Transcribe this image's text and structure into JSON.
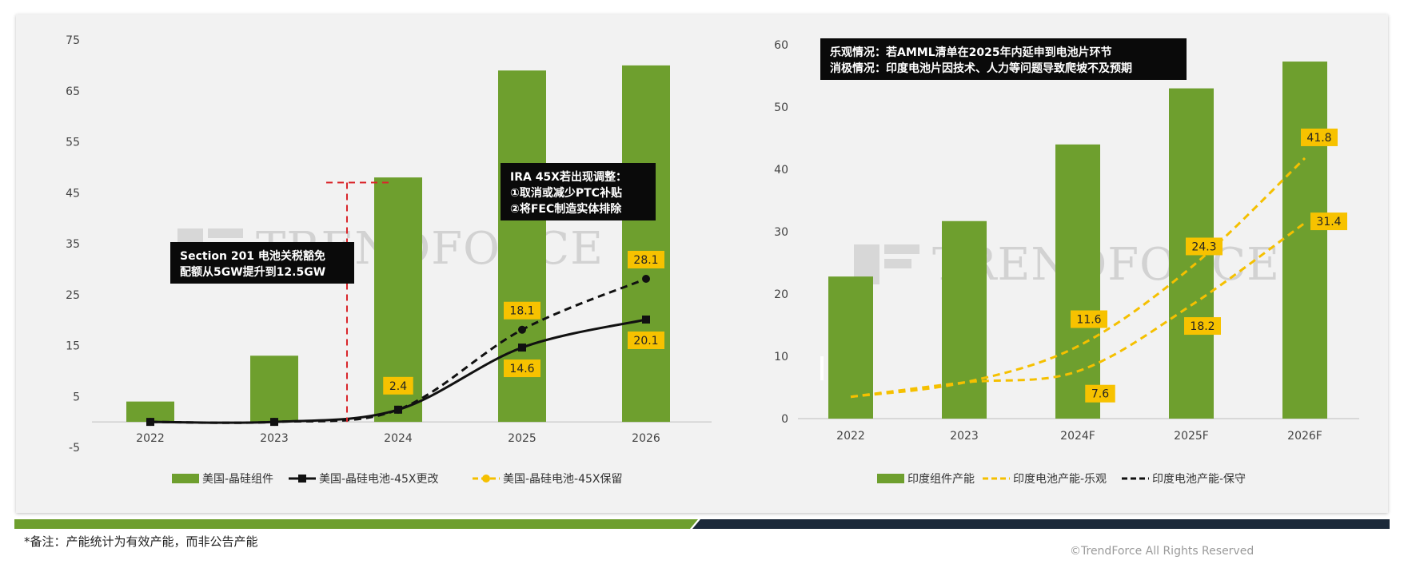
{
  "colors": {
    "bar": "#6e9f2e",
    "solid_line": "#111111",
    "dashed_yellow": "#f5c000",
    "dashed_black": "#111111",
    "label_box": "#f7c200",
    "annotation_bg": "#0a0a0a",
    "redline": "#d9262b"
  },
  "watermark": "TRENDFORCE",
  "footer": {
    "note": "*备注：产能统计为有效产能，而非公告产能",
    "copyright": "©TrendForce All Rights Reserved"
  },
  "chart_data": [
    {
      "type": "bar",
      "categories": [
        "2022",
        "2023",
        "2024",
        "2025",
        "2026"
      ],
      "ylim": [
        -5,
        75
      ],
      "yticks": [
        -5,
        5,
        15,
        25,
        35,
        45,
        55,
        65,
        75
      ],
      "ytick_labels": [
        "-5",
        "5",
        "15",
        "25",
        "35",
        "45",
        "55",
        "65",
        "75"
      ],
      "grid": false,
      "legend_placement": "bottom",
      "series": [
        {
          "name": "美国-晶硅组件",
          "kind": "bar",
          "values": [
            4,
            13,
            48,
            69,
            70
          ]
        },
        {
          "name": "美国-晶硅电池-45X更改",
          "kind": "line-solid",
          "values": [
            0,
            0,
            2.4,
            14.6,
            20.1
          ]
        },
        {
          "name": "美国-晶硅电池-45X保留",
          "kind": "line-dashed",
          "values": [
            0,
            0,
            2.4,
            18.1,
            28.1
          ]
        }
      ],
      "data_labels": [
        {
          "text": "2.4",
          "category": "2024",
          "value": 2.4,
          "series": "美国-晶硅电池-45X保留"
        },
        {
          "text": "18.1",
          "category": "2025",
          "value": 18.1,
          "series": "美国-晶硅电池-45X保留"
        },
        {
          "text": "28.1",
          "category": "2026",
          "value": 28.1,
          "series": "美国-晶硅电池-45X保留"
        },
        {
          "text": "14.6",
          "category": "2025",
          "value": 14.6,
          "series": "美国-晶硅电池-45X更改"
        },
        {
          "text": "20.1",
          "category": "2026",
          "value": 20.1,
          "series": "美国-晶硅电池-45X更改"
        }
      ],
      "annotations": [
        {
          "lines": [
            "Section 201 电池关税豁免",
            "配额从5GW提升到12.5GW"
          ]
        },
        {
          "lines": [
            "IRA 45X若出现调整：",
            "①取消或减少PTC补贴",
            "②将FEC制造实体排除"
          ]
        }
      ]
    },
    {
      "type": "bar",
      "categories": [
        "2022",
        "2023",
        "2024F",
        "2025F",
        "2026F"
      ],
      "ylim": [
        0,
        60
      ],
      "yticks": [
        0,
        10,
        20,
        30,
        40,
        50,
        60
      ],
      "ytick_labels": [
        "0",
        "10",
        "20",
        "30",
        "40",
        "50",
        "60"
      ],
      "grid": false,
      "legend_placement": "bottom",
      "series": [
        {
          "name": "印度组件产能",
          "kind": "bar",
          "values": [
            22.8,
            31.7,
            44,
            53,
            57.3
          ]
        },
        {
          "name": "印度电池产能-乐观",
          "kind": "line-dashed",
          "values": [
            3.5,
            5.8,
            11.6,
            24.3,
            41.8
          ]
        },
        {
          "name": "印度电池产能-保守",
          "kind": "line-dashed",
          "values": [
            3.5,
            5.8,
            7.6,
            18.2,
            31.4
          ]
        }
      ],
      "data_labels": [
        {
          "text": "11.6",
          "category": "2024F",
          "value": 11.6,
          "series": "印度电池产能-乐观"
        },
        {
          "text": "24.3",
          "category": "2025F",
          "value": 24.3,
          "series": "印度电池产能-乐观"
        },
        {
          "text": "41.8",
          "category": "2026F",
          "value": 41.8,
          "series": "印度电池产能-乐观"
        },
        {
          "text": "7.6",
          "category": "2024F",
          "value": 7.6,
          "series": "印度电池产能-保守"
        },
        {
          "text": "18.2",
          "category": "2025F",
          "value": 18.2,
          "series": "印度电池产能-保守"
        },
        {
          "text": "31.4",
          "category": "2026F",
          "value": 31.4,
          "series": "印度电池产能-保守"
        }
      ],
      "annotations": [
        {
          "lines": [
            "乐观情况：若AMML清单在2025年内延申到电池片环节",
            "消极情况：印度电池片因技术、人力等问题导致爬坡不及预期"
          ]
        }
      ]
    }
  ]
}
